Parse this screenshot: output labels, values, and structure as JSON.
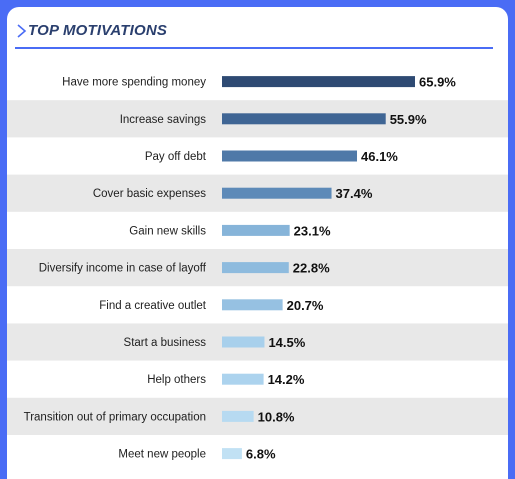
{
  "header": {
    "title": "TOP MOTIVATIONS"
  },
  "colors": {
    "background": "#4a6cf5",
    "card": "#ffffff",
    "row_alt": "#e8e8e8",
    "title": "#2a3f6e",
    "bar_shades": [
      "#2e4a73",
      "#3f6594",
      "#4f79a8",
      "#5d8ab8",
      "#86b4d9",
      "#8ebbde",
      "#96c1e2",
      "#a8d0ec",
      "#acd3ee",
      "#b7daf1",
      "#c1e1f4"
    ]
  },
  "chart_data": {
    "type": "bar",
    "orientation": "horizontal",
    "title": "TOP MOTIVATIONS",
    "categories": [
      "Have more spending money",
      "Increase savings",
      "Pay off debt",
      "Cover basic expenses",
      "Gain new skills",
      "Diversify income in case of layoff",
      "Find a creative outlet",
      "Start a business",
      "Help others",
      "Transition out of primary occupation",
      "Meet new people"
    ],
    "values": [
      65.9,
      55.9,
      46.1,
      37.4,
      23.1,
      22.8,
      20.7,
      14.5,
      14.2,
      10.8,
      6.8
    ],
    "value_labels": [
      "65.9%",
      "55.9%",
      "46.1%",
      "37.4%",
      "23.1%",
      "22.8%",
      "20.7%",
      "14.5%",
      "14.2%",
      "10.8%",
      "6.8%"
    ],
    "xlim": [
      0,
      65.9
    ],
    "grid": false,
    "legend": false
  }
}
